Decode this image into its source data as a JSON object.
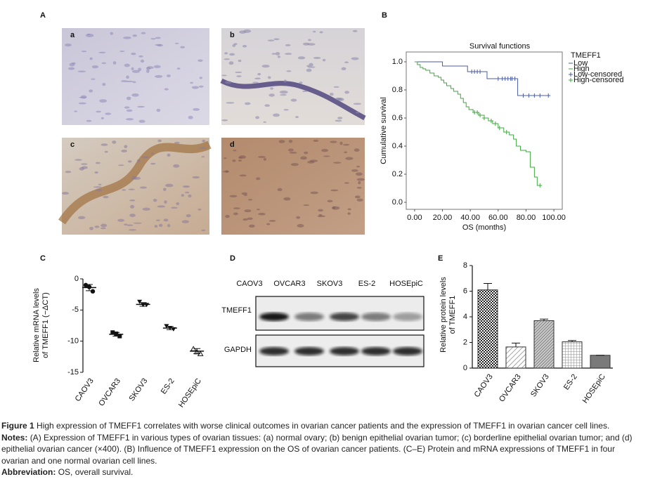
{
  "panel_labels": [
    "A",
    "B",
    "C",
    "D",
    "E"
  ],
  "panel_a": {
    "images": [
      "a",
      "b",
      "c",
      "d"
    ]
  },
  "panel_d": {
    "lanes": [
      "CAOV3",
      "OVCAR3",
      "SKOV3",
      "ES-2",
      "HOSEpiC"
    ],
    "bands": [
      "TMEFF1",
      "GAPDH"
    ]
  },
  "chart_data": [
    {
      "type": "line",
      "title": "Survival functions",
      "x_label": "OS (months)",
      "y_label": "Cumulative survival",
      "legend_title": "TMEFF1",
      "series": [
        {
          "name": "Low",
          "color": "#4b5ea6",
          "x": [
            0,
            20,
            38,
            52,
            74,
            96
          ],
          "values": [
            1.0,
            0.97,
            0.93,
            0.88,
            0.76,
            0.76
          ]
        },
        {
          "name": "High",
          "color": "#3fa83f",
          "x": [
            0,
            2,
            4,
            6,
            8,
            11,
            14,
            17,
            19,
            21,
            23,
            26,
            28,
            31,
            33,
            35,
            37,
            39,
            42,
            46,
            50,
            53,
            56,
            60,
            64,
            68,
            71,
            73,
            76,
            80,
            83,
            86,
            88,
            90
          ],
          "values": [
            1.0,
            0.98,
            0.96,
            0.95,
            0.94,
            0.92,
            0.9,
            0.89,
            0.87,
            0.85,
            0.83,
            0.81,
            0.79,
            0.77,
            0.74,
            0.71,
            0.68,
            0.66,
            0.64,
            0.62,
            0.6,
            0.58,
            0.56,
            0.53,
            0.5,
            0.48,
            0.45,
            0.4,
            0.37,
            0.36,
            0.25,
            0.18,
            0.12,
            0.12
          ]
        },
        {
          "name": "Low-censored",
          "color": "#4b5ea6",
          "marker": "plus",
          "x": [
            41,
            43,
            45,
            47,
            60,
            63,
            65,
            67,
            69,
            70,
            72,
            78,
            82,
            86,
            90,
            96
          ],
          "values": [
            0.93,
            0.93,
            0.93,
            0.93,
            0.88,
            0.88,
            0.88,
            0.88,
            0.88,
            0.88,
            0.88,
            0.76,
            0.76,
            0.76,
            0.76,
            0.76
          ]
        },
        {
          "name": "High-censored",
          "color": "#3fa83f",
          "marker": "plus",
          "x": [
            43,
            45,
            47,
            50,
            55,
            58,
            61,
            66,
            90
          ],
          "values": [
            0.64,
            0.64,
            0.62,
            0.6,
            0.58,
            0.56,
            0.53,
            0.5,
            0.12
          ]
        }
      ],
      "xlim": [
        -6,
        106
      ],
      "xticks": [
        {
          "value": 0,
          "label": "0.00"
        },
        {
          "value": 20,
          "label": "20.00"
        },
        {
          "value": 40,
          "label": "40.00"
        },
        {
          "value": 60,
          "label": "60.00"
        },
        {
          "value": 80,
          "label": "80.00"
        },
        {
          "value": 100,
          "label": "100.00"
        }
      ],
      "ylim": [
        -0.05,
        1.07
      ],
      "yticks": [
        {
          "value": 0,
          "label": "0.0"
        },
        {
          "value": 0.2,
          "label": "0.2"
        },
        {
          "value": 0.4,
          "label": "0.4"
        },
        {
          "value": 0.6,
          "label": "0.6"
        },
        {
          "value": 0.8,
          "label": "0.8"
        },
        {
          "value": 1.0,
          "label": "1.0"
        }
      ]
    },
    {
      "type": "scatter",
      "y_label": [
        "Relative mRNA levels",
        "of TMEFF1 (−ΔCT)"
      ],
      "categories": [
        "CAOV3",
        "OVCAR3",
        "SKOV3",
        "ES-2",
        "HOSEpiC"
      ],
      "values": [
        -1.4,
        -8.9,
        -4.1,
        -7.9,
        -11.6
      ],
      "errors": [
        0.5,
        0.3,
        0.3,
        0.25,
        0.4
      ],
      "points": [
        [
          -1.0,
          -1.3,
          -2.0
        ],
        [
          -8.6,
          -8.8,
          -9.2
        ],
        [
          -3.7,
          -4.2,
          -4.2
        ],
        [
          -7.6,
          -7.9,
          -8.1
        ],
        [
          -11.2,
          -11.7,
          -12.0
        ]
      ],
      "markers": [
        "circle",
        "square",
        "triangle-down",
        "triangle-down",
        "triangle-open"
      ],
      "color": "#111111",
      "ylim": [
        -15,
        0
      ],
      "yticks": [
        0,
        -5,
        -10,
        -15
      ]
    },
    {
      "type": "bar",
      "y_label": [
        "Relative protein levels",
        "of TMEFF1"
      ],
      "categories": [
        "CAOV3",
        "OVCAR3",
        "SKOV3",
        "ES-2",
        "HOSEpiC"
      ],
      "values": [
        6.1,
        1.65,
        3.7,
        2.05,
        1.0
      ],
      "errors": [
        0.5,
        0.3,
        0.12,
        0.1,
        0
      ],
      "patterns": [
        "checker",
        "diag-light",
        "diag-dense",
        "grid",
        "solid"
      ],
      "ylim": [
        0,
        8
      ],
      "yticks": [
        0,
        2,
        4,
        6,
        8
      ]
    }
  ],
  "caption": {
    "figure_label": "Figure 1",
    "title": "High expression of TMEFF1 correlates with worse clinical outcomes in ovarian cancer patients and the expression of TMEFF1 in ovarian cancer cell lines.",
    "notes_label": "Notes:",
    "notes": "(A) Expression of TMEFF1 in various types of ovarian tissues: (a) normal ovary; (b) benign epithelial ovarian tumor; (c) borderline epithelial ovarian tumor; and (d) epithelial ovarian cancer (×400). (B) Influence of TMEFF1 expression on the OS of ovarian cancer patients. (C–E) Protein and mRNA expressions of TMEFF1 in four ovarian and one normal ovarian cell lines.",
    "abbreviation_label": "Abbreviation:",
    "abbreviation": "OS, overall survival."
  }
}
